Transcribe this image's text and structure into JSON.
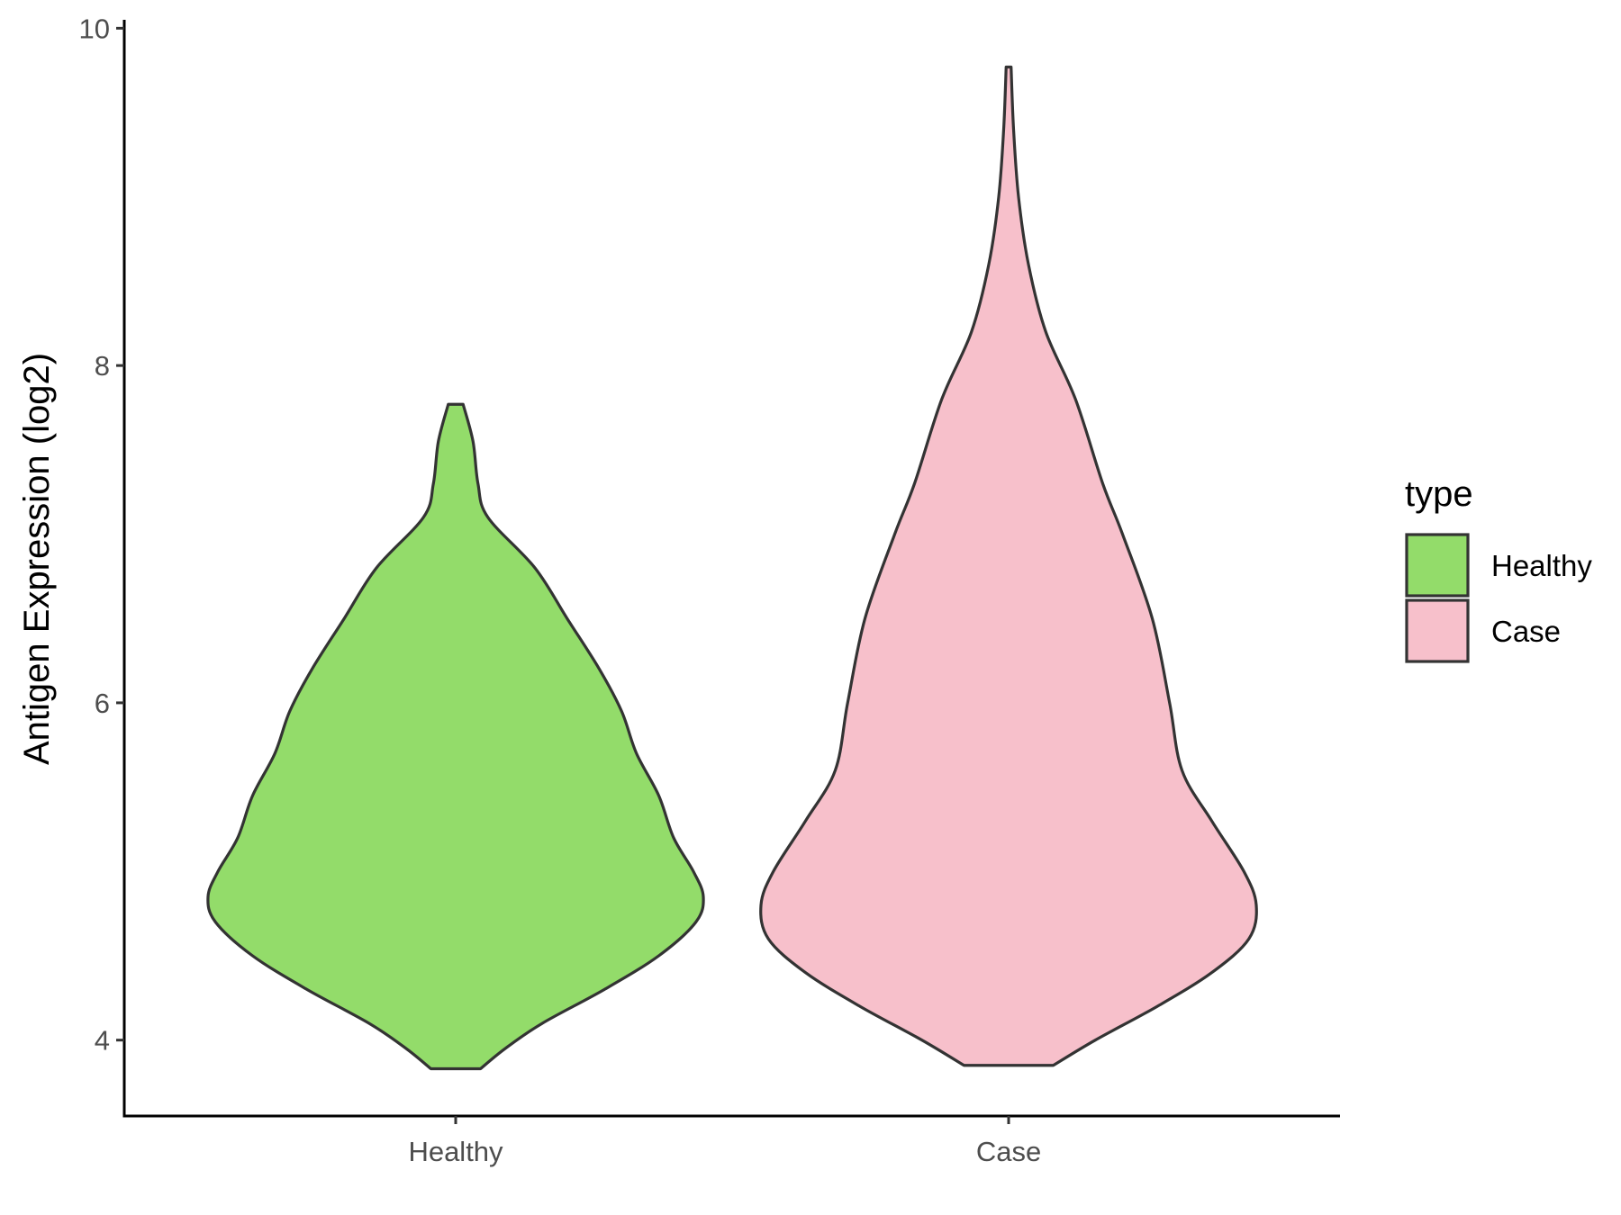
{
  "chart_data": {
    "type": "violin",
    "title": "",
    "xlabel": "",
    "ylabel": "Antigen Expression (log2)",
    "ylim": [
      3.55,
      10.05
    ],
    "yticks": [
      4,
      6,
      8,
      10
    ],
    "categories": [
      "Healthy",
      "Case"
    ],
    "grid": false,
    "legend": {
      "title": "type",
      "position": "right",
      "entries": [
        {
          "label": "Healthy",
          "color": "#93dc6a"
        },
        {
          "label": "Case",
          "color": "#f7c0cb"
        }
      ]
    },
    "series": [
      {
        "name": "Healthy",
        "color": "#93dc6a",
        "min": 3.83,
        "max": 7.77,
        "density": [
          [
            3.83,
            0.1
          ],
          [
            3.95,
            0.2
          ],
          [
            4.1,
            0.35
          ],
          [
            4.3,
            0.6
          ],
          [
            4.5,
            0.82
          ],
          [
            4.7,
            0.97
          ],
          [
            4.85,
            1.0
          ],
          [
            5.0,
            0.96
          ],
          [
            5.2,
            0.88
          ],
          [
            5.45,
            0.82
          ],
          [
            5.7,
            0.73
          ],
          [
            5.95,
            0.67
          ],
          [
            6.2,
            0.58
          ],
          [
            6.5,
            0.45
          ],
          [
            6.8,
            0.32
          ],
          [
            7.1,
            0.13
          ],
          [
            7.3,
            0.09
          ],
          [
            7.55,
            0.07
          ],
          [
            7.77,
            0.03
          ]
        ]
      },
      {
        "name": "Case",
        "color": "#f7c0cb",
        "min": 3.85,
        "max": 9.77,
        "density": [
          [
            3.85,
            0.18
          ],
          [
            4.0,
            0.35
          ],
          [
            4.2,
            0.6
          ],
          [
            4.4,
            0.82
          ],
          [
            4.6,
            0.97
          ],
          [
            4.8,
            1.0
          ],
          [
            5.0,
            0.95
          ],
          [
            5.3,
            0.82
          ],
          [
            5.6,
            0.7
          ],
          [
            6.0,
            0.65
          ],
          [
            6.5,
            0.58
          ],
          [
            7.0,
            0.46
          ],
          [
            7.3,
            0.38
          ],
          [
            7.8,
            0.27
          ],
          [
            8.2,
            0.15
          ],
          [
            8.6,
            0.08
          ],
          [
            9.0,
            0.04
          ],
          [
            9.4,
            0.02
          ],
          [
            9.77,
            0.01
          ]
        ]
      }
    ]
  }
}
